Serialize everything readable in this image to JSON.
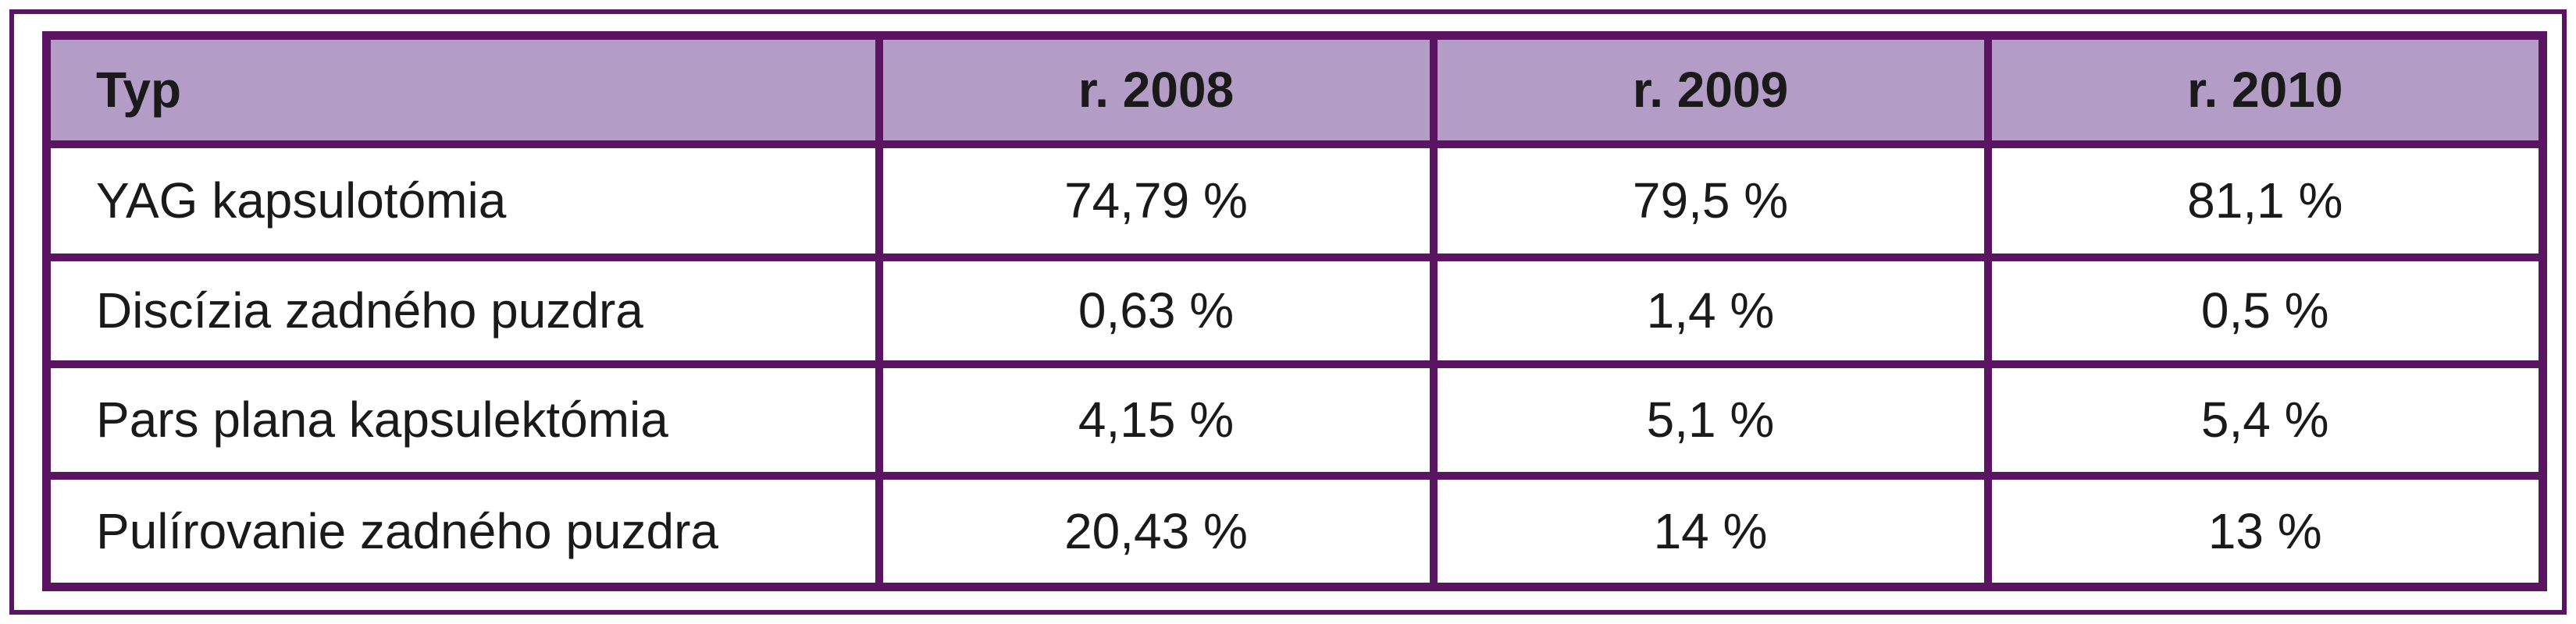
{
  "table": {
    "header": [
      "Typ",
      "r. 2008",
      "r. 2009",
      "r. 2010"
    ],
    "rows": [
      [
        "YAG kapsulotómia",
        "74,79 %",
        "79,5 %",
        "81,1 %"
      ],
      [
        "Discízia zadného puzdra",
        "0,63 %",
        "1,4 %",
        "0,5 %"
      ],
      [
        "Pars plana kapsulektómia",
        "4,15 %",
        "5,1 %",
        "5,4 %"
      ],
      [
        "Pulírovanie zadného puzdra",
        "20,43 %",
        "14 %",
        "13 %"
      ]
    ]
  }
}
